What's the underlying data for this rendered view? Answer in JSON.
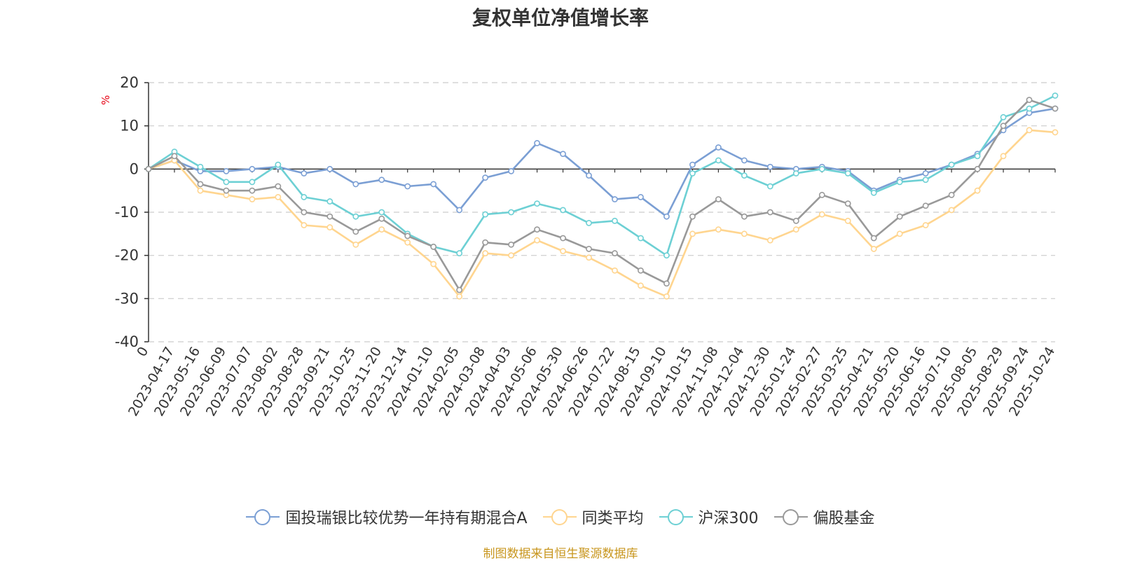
{
  "chart_data": {
    "type": "line",
    "title": "复权单位净值增长率",
    "ylabel": "%",
    "ylim": [
      -40,
      20
    ],
    "yticks": [
      20,
      10,
      0,
      -10,
      -20,
      -30,
      -40
    ],
    "grid": true,
    "legend_position": "bottom-center",
    "x": [
      "0",
      "2023-04-17",
      "2023-05-16",
      "2023-06-09",
      "2023-07-07",
      "2023-08-02",
      "2023-08-28",
      "2023-09-21",
      "2023-10-25",
      "2023-11-20",
      "2023-12-14",
      "2024-01-10",
      "2024-02-05",
      "2024-03-08",
      "2024-04-03",
      "2024-05-06",
      "2024-05-30",
      "2024-06-26",
      "2024-07-22",
      "2024-08-15",
      "2024-09-10",
      "2024-10-15",
      "2024-11-08",
      "2024-12-04",
      "2024-12-30",
      "2025-01-24",
      "2025-02-27",
      "2025-03-25",
      "2025-04-21",
      "2025-05-20",
      "2025-06-16",
      "2025-07-10",
      "2025-08-05",
      "2025-08-29",
      "2025-09-24",
      "2025-10-24"
    ],
    "series": [
      {
        "name": "国投瑞银比较优势一年持有期混合A",
        "color": "#7b9fd4",
        "values": [
          0,
          2,
          -0.5,
          -0.5,
          0,
          0.5,
          -1,
          0,
          -3.5,
          -2.5,
          -4,
          -3.5,
          -9.5,
          -2,
          -0.5,
          6,
          3.5,
          -1.5,
          -7,
          -6.5,
          -11,
          1,
          5,
          2,
          0.5,
          0,
          0.5,
          -0.5,
          -5,
          -2.5,
          -1,
          1,
          3.5,
          9,
          13,
          14
        ]
      },
      {
        "name": "同类平均",
        "color": "#ffd58f",
        "values": [
          0,
          2,
          -5,
          -6,
          -7,
          -6.5,
          -13,
          -13.5,
          -17.5,
          -14,
          -17,
          -22,
          -29.5,
          -19.5,
          -20,
          -16.5,
          -19,
          -20.5,
          -23.5,
          -27,
          -29.5,
          -15,
          -14,
          -15,
          -16.5,
          -14,
          -10.5,
          -12,
          -18.5,
          -15,
          -13,
          -9.5,
          -5,
          3,
          9,
          8.5
        ]
      },
      {
        "name": "沪深300",
        "color": "#6dd0d4",
        "values": [
          0,
          4,
          0.5,
          -3,
          -3,
          1,
          -6.5,
          -7.5,
          -11,
          -10,
          -15,
          -18,
          -19.5,
          -10.5,
          -10,
          -8,
          -9.5,
          -12.5,
          -12,
          -16,
          -20,
          -1,
          2,
          -1.5,
          -4,
          -1,
          0,
          -1,
          -5.5,
          -3,
          -2.5,
          1,
          3,
          12,
          14,
          17
        ]
      },
      {
        "name": "偏股基金",
        "color": "#999999",
        "values": [
          0,
          3,
          -3.5,
          -5,
          -5,
          -4,
          -10,
          -11,
          -14.5,
          -11.5,
          -15.5,
          -18,
          -28,
          -17,
          -17.5,
          -14,
          -16,
          -18.5,
          -19.5,
          -23.5,
          -26.5,
          -11,
          -7,
          -11,
          -10,
          -12,
          -6,
          -8,
          -16,
          -11,
          -8.5,
          -6,
          0,
          10,
          16,
          14
        ]
      }
    ]
  },
  "legend": {
    "items": [
      "国投瑞银比较优势一年持有期混合A",
      "同类平均",
      "沪深300",
      "偏股基金"
    ]
  },
  "footer": {
    "source": "制图数据来自恒生聚源数据库"
  }
}
